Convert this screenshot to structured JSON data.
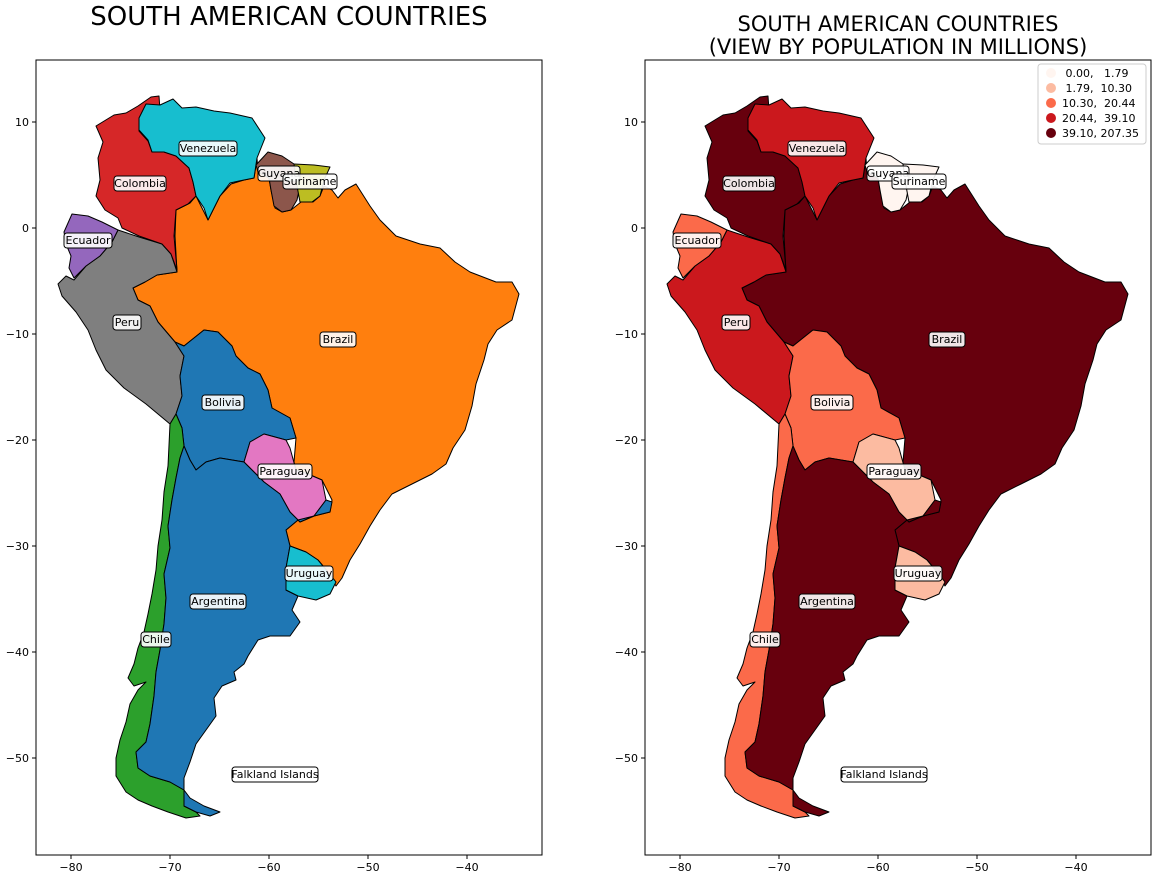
{
  "left_map": {
    "title": "SOUTH AMERICAN COUNTRIES",
    "x_ticks": [
      "−80",
      "−70",
      "−60",
      "−50",
      "−40"
    ],
    "y_ticks": [
      "10",
      "0",
      "−10",
      "−20",
      "−30",
      "−40",
      "−50"
    ]
  },
  "right_map": {
    "title_line1": "SOUTH AMERICAN COUNTRIES",
    "title_line2": "(VIEW BY POPULATION IN MILLIONS)",
    "x_ticks": [
      "−80",
      "−70",
      "−60",
      "−50",
      "−40"
    ],
    "y_ticks": [
      "10",
      "0",
      "−10",
      "−20",
      "−30",
      "−40",
      "−50"
    ],
    "legend": [
      {
        "label": " 0.00,   1.79",
        "color": "#fff5f0"
      },
      {
        "label": " 1.79,  10.30",
        "color": "#fcbba1"
      },
      {
        "label": "10.30,  20.44",
        "color": "#fb6a4a"
      },
      {
        "label": "20.44,  39.10",
        "color": "#cb181d"
      },
      {
        "label": "39.10, 207.35",
        "color": "#67000d"
      }
    ]
  },
  "countries": [
    {
      "name": "Venezuela",
      "color_left": "#17becf",
      "color_right": "#cb181d"
    },
    {
      "name": "Colombia",
      "color_left": "#d62728",
      "color_right": "#67000d"
    },
    {
      "name": "Guyana",
      "color_left": "#8c564b",
      "color_right": "#fff5f0"
    },
    {
      "name": "Suriname",
      "color_left": "#bcbd22",
      "color_right": "#fff5f0"
    },
    {
      "name": "Ecuador",
      "color_left": "#9467bd",
      "color_right": "#fb6a4a"
    },
    {
      "name": "Peru",
      "color_left": "#7f7f7f",
      "color_right": "#cb181d"
    },
    {
      "name": "Brazil",
      "color_left": "#ff7f0e",
      "color_right": "#67000d"
    },
    {
      "name": "Bolivia",
      "color_left": "#1f77b4",
      "color_right": "#fb6a4a"
    },
    {
      "name": "Paraguay",
      "color_left": "#e377c2",
      "color_right": "#fcbba1"
    },
    {
      "name": "Uruguay",
      "color_left": "#17becf",
      "color_right": "#fcbba1"
    },
    {
      "name": "Argentina",
      "color_left": "#1f77b4",
      "color_right": "#67000d"
    },
    {
      "name": "Chile",
      "color_left": "#2ca02c",
      "color_right": "#fb6a4a"
    },
    {
      "name": "Falkland Islands",
      "color_left": "#ffffff",
      "color_right": "#fff5f0"
    }
  ]
}
